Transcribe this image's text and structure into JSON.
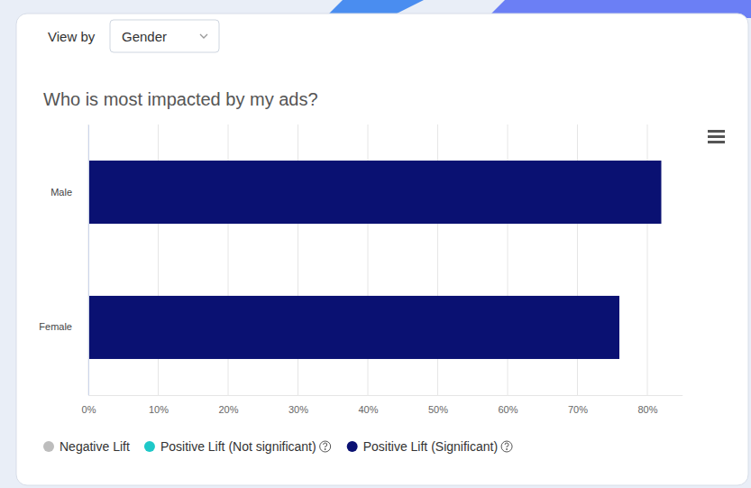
{
  "controls": {
    "view_by_label": "View by",
    "view_by_value": "Gender"
  },
  "chart_data": {
    "type": "bar",
    "title": "Who is most impacted by my ads?",
    "orientation": "horizontal",
    "categories": [
      "Male",
      "Female"
    ],
    "series": [
      {
        "name": "Negative Lift",
        "color": "#bdbdbd",
        "values": [
          null,
          null
        ]
      },
      {
        "name": "Positive Lift (Not significant)",
        "color": "#1ec8c8",
        "values": [
          null,
          null
        ]
      },
      {
        "name": "Positive Lift (Significant)",
        "color": "#0a1172",
        "values": [
          82,
          76
        ]
      }
    ],
    "xlim": [
      0,
      85
    ],
    "xticks": [
      {
        "value": 0,
        "label": "0%"
      },
      {
        "value": 10,
        "label": "10%"
      },
      {
        "value": 20,
        "label": "20%"
      },
      {
        "value": 30,
        "label": "30%"
      },
      {
        "value": 40,
        "label": "40%"
      },
      {
        "value": 50,
        "label": "50%"
      },
      {
        "value": 60,
        "label": "60%"
      },
      {
        "value": 70,
        "label": "70%"
      },
      {
        "value": 80,
        "label": "80%"
      }
    ],
    "grid": true,
    "legend": "bottom"
  }
}
